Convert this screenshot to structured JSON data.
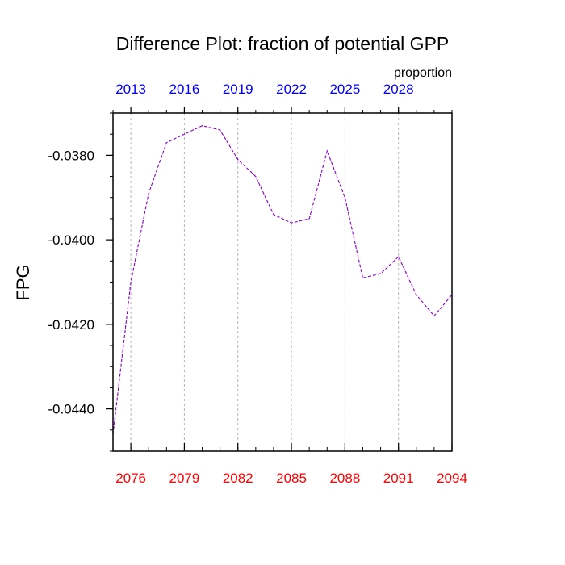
{
  "chart_data": {
    "type": "line",
    "title": "Difference Plot: fraction of potential GPP",
    "ylabel": "FPG",
    "top_axis_label": "proportion",
    "x_bottom_ticks": [
      "2076",
      "2079",
      "2082",
      "2085",
      "2088",
      "2091",
      "2094"
    ],
    "x_top_ticks": [
      "2013",
      "2016",
      "2019",
      "2022",
      "2025",
      "2028"
    ],
    "y_ticks": [
      "-0.0380",
      "-0.0400",
      "-0.0420",
      "-0.0440"
    ],
    "xlim": [
      2075,
      2094
    ],
    "ylim": [
      -0.045,
      -0.037
    ],
    "grid": "vertical dashed at bottom major ticks",
    "colors": {
      "bottom_ticks": "#ff0000",
      "top_ticks": "#0000ff",
      "line": "#8800cc"
    },
    "series": [
      {
        "x": [
          2075,
          2076,
          2077,
          2078,
          2079,
          2080,
          2081,
          2082,
          2083,
          2084,
          2085,
          2086,
          2087,
          2088,
          2089,
          2090,
          2091,
          2092,
          2093,
          2094
        ],
        "y": [
          -0.0446,
          -0.041,
          -0.0389,
          -0.0377,
          -0.0375,
          -0.0373,
          -0.0374,
          -0.0381,
          -0.0385,
          -0.0394,
          -0.0396,
          -0.0395,
          -0.0379,
          -0.039,
          -0.0409,
          -0.0408,
          -0.0404,
          -0.0413,
          -0.0418,
          -0.0413
        ]
      }
    ]
  }
}
